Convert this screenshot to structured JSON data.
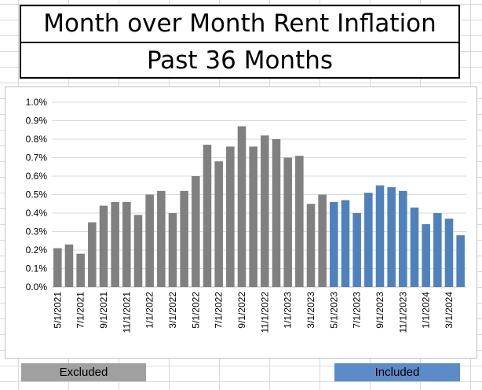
{
  "title": {
    "line1": "Month over Month Rent Inflation",
    "line2": "Past 36 Months"
  },
  "legend": {
    "excluded_label": "Excluded",
    "included_label": "Included",
    "excluded_color": "#808080",
    "included_color": "#4f81bd"
  },
  "chart_data": {
    "type": "bar",
    "categories": [
      "5/1/2021",
      "6/1/2021",
      "7/1/2021",
      "8/1/2021",
      "9/1/2021",
      "10/1/2021",
      "11/1/2021",
      "12/1/2021",
      "1/1/2022",
      "2/1/2022",
      "3/1/2022",
      "4/1/2022",
      "5/1/2022",
      "6/1/2022",
      "7/1/2022",
      "8/1/2022",
      "9/1/2022",
      "10/1/2022",
      "11/1/2022",
      "12/1/2022",
      "1/1/2023",
      "2/1/2023",
      "3/1/2023",
      "4/1/2023",
      "5/1/2023",
      "6/1/2023",
      "7/1/2023",
      "8/1/2023",
      "9/1/2023",
      "10/1/2023",
      "11/1/2023",
      "12/1/2023",
      "1/1/2024",
      "2/1/2024",
      "3/1/2024",
      "4/1/2024"
    ],
    "tick_labels_shown": [
      "5/1/2021",
      "7/1/2021",
      "9/1/2021",
      "11/1/2021",
      "1/1/2022",
      "3/1/2022",
      "5/1/2022",
      "7/1/2022",
      "9/1/2022",
      "11/1/2022",
      "1/1/2023",
      "3/1/2023",
      "5/1/2023",
      "7/1/2023",
      "9/1/2023",
      "11/1/2023",
      "1/1/2024",
      "3/1/2024"
    ],
    "series": [
      {
        "name": "Excluded",
        "color": "#808080",
        "values": [
          0.21,
          0.23,
          0.18,
          0.35,
          0.44,
          0.46,
          0.46,
          0.39,
          0.5,
          0.52,
          0.4,
          0.52,
          0.6,
          0.77,
          0.68,
          0.76,
          0.87,
          0.76,
          0.82,
          0.8,
          0.7,
          0.71,
          0.45,
          0.5,
          null,
          null,
          null,
          null,
          null,
          null,
          null,
          null,
          null,
          null,
          null,
          null
        ]
      },
      {
        "name": "Included",
        "color": "#4f81bd",
        "values": [
          null,
          null,
          null,
          null,
          null,
          null,
          null,
          null,
          null,
          null,
          null,
          null,
          null,
          null,
          null,
          null,
          null,
          null,
          null,
          null,
          null,
          null,
          null,
          null,
          0.46,
          0.47,
          0.4,
          0.51,
          0.55,
          0.54,
          0.52,
          0.43,
          0.34,
          0.4,
          0.37,
          0.28
        ]
      }
    ],
    "yticks": [
      "0.0%",
      "0.1%",
      "0.2%",
      "0.3%",
      "0.4%",
      "0.5%",
      "0.6%",
      "0.7%",
      "0.8%",
      "0.9%",
      "1.0%"
    ],
    "ylim": [
      0,
      1.0
    ],
    "yunit": "%",
    "grid": true
  }
}
